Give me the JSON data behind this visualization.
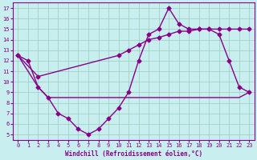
{
  "line1_x": [
    0,
    1,
    2,
    3,
    4,
    5,
    6,
    7,
    8,
    9,
    10,
    11,
    12,
    13,
    14,
    15,
    16,
    17,
    18,
    19,
    20,
    21,
    22,
    23
  ],
  "line1_y": [
    12.5,
    12.0,
    9.5,
    8.5,
    7.0,
    6.5,
    5.5,
    5.0,
    5.5,
    6.5,
    7.5,
    9.0,
    12.0,
    14.5,
    15.0,
    17.0,
    15.5,
    15.0,
    15.0,
    15.0,
    14.5,
    12.0,
    9.5,
    9.0
  ],
  "line2_x": [
    0,
    2,
    10,
    11,
    12,
    13,
    14,
    15,
    16,
    17,
    18,
    19,
    20,
    21,
    22,
    23
  ],
  "line2_y": [
    12.5,
    10.5,
    12.5,
    13.0,
    13.5,
    14.0,
    14.2,
    14.5,
    14.8,
    14.8,
    15.0,
    15.0,
    15.0,
    15.0,
    15.0,
    15.0
  ],
  "line3_x": [
    0,
    2,
    3,
    4,
    5,
    6,
    7,
    8,
    9,
    10,
    11,
    12,
    13,
    14,
    15,
    16,
    17,
    18,
    19,
    20,
    21,
    22,
    23
  ],
  "line3_y": [
    12.5,
    9.5,
    8.5,
    8.5,
    8.5,
    8.5,
    8.5,
    8.5,
    8.5,
    8.5,
    8.5,
    8.5,
    8.5,
    8.5,
    8.5,
    8.5,
    8.5,
    8.5,
    8.5,
    8.5,
    8.5,
    8.5,
    9.0
  ],
  "color": "#880088",
  "bg_color": "#c8eef0",
  "grid_color": "#99ccbb",
  "xlabel": "Windchill (Refroidissement éolien,°C)",
  "xlim": [
    -0.5,
    23.5
  ],
  "ylim": [
    4.5,
    17.5
  ],
  "yticks": [
    5,
    6,
    7,
    8,
    9,
    10,
    11,
    12,
    13,
    14,
    15,
    16,
    17
  ],
  "xticks": [
    0,
    1,
    2,
    3,
    4,
    5,
    6,
    7,
    8,
    9,
    10,
    11,
    12,
    13,
    14,
    15,
    16,
    17,
    18,
    19,
    20,
    21,
    22,
    23
  ],
  "markersize": 2.5,
  "linewidth": 1.0
}
